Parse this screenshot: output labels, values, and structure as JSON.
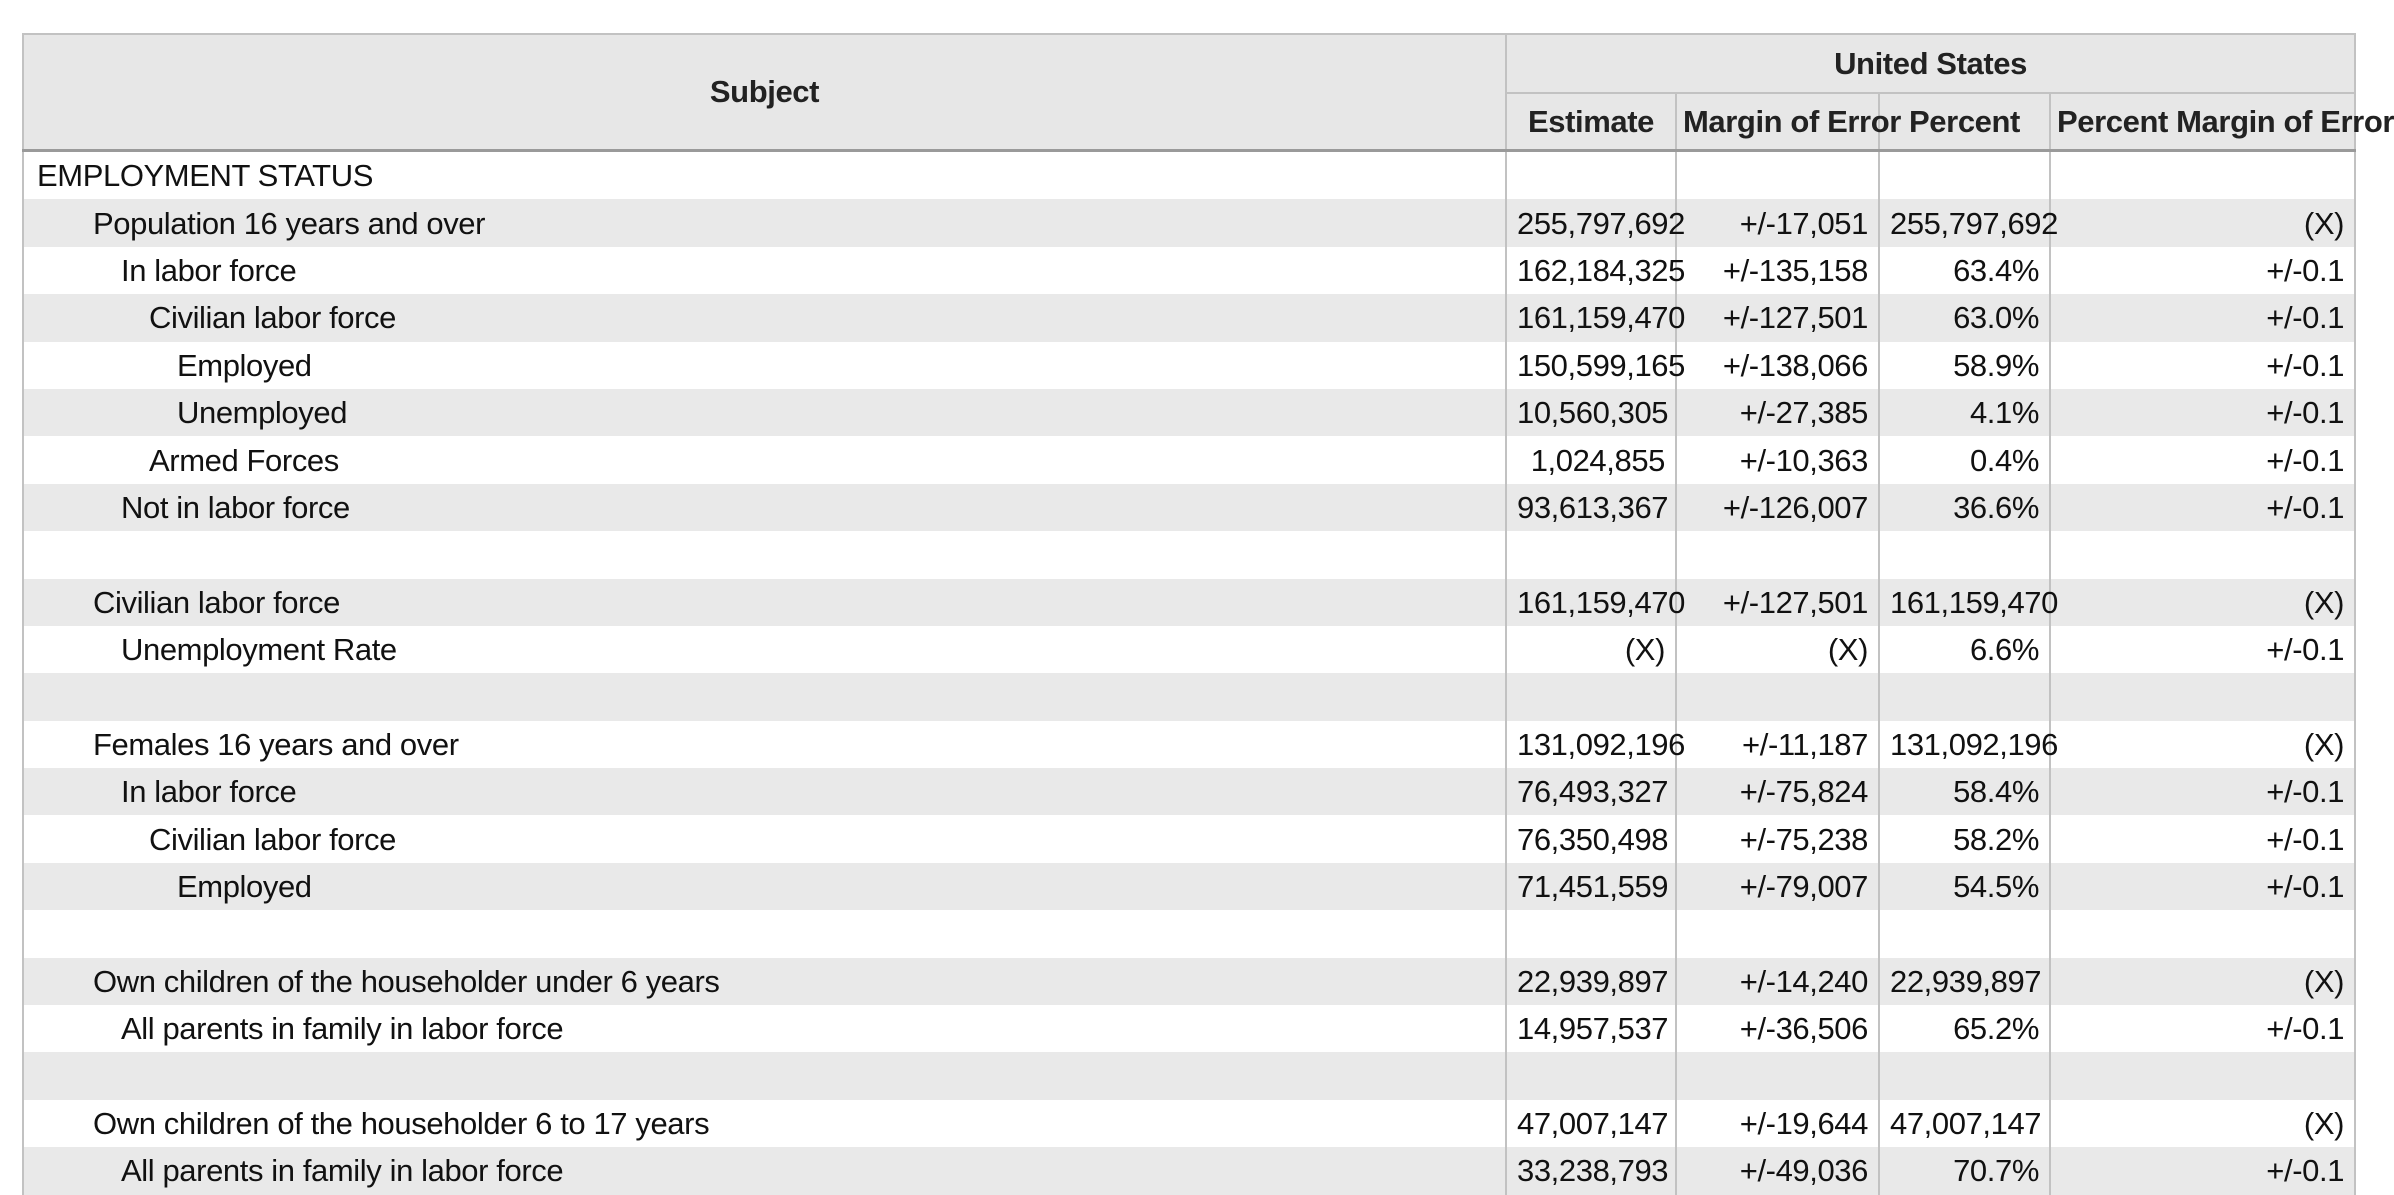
{
  "header": {
    "group_title": "United States",
    "subject": "Subject",
    "estimate": "Estimate",
    "margin_of_error": "Margin of Error",
    "percent": "Percent",
    "percent_margin_of_error": "Percent Margin of Error"
  },
  "rows": [
    {
      "label": "EMPLOYMENT STATUS",
      "indent": 0,
      "estimate": "",
      "moe": "",
      "percent": "",
      "pmoe": ""
    },
    {
      "label": "Population 16 years and over",
      "indent": 1,
      "estimate": "255,797,692",
      "moe": "+/-17,051",
      "percent": "255,797,692",
      "pmoe": "(X)"
    },
    {
      "label": "In labor force",
      "indent": 2,
      "estimate": "162,184,325",
      "moe": "+/-135,158",
      "percent": "63.4%",
      "pmoe": "+/-0.1"
    },
    {
      "label": "Civilian labor force",
      "indent": 3,
      "estimate": "161,159,470",
      "moe": "+/-127,501",
      "percent": "63.0%",
      "pmoe": "+/-0.1"
    },
    {
      "label": "Employed",
      "indent": 4,
      "estimate": "150,599,165",
      "moe": "+/-138,066",
      "percent": "58.9%",
      "pmoe": "+/-0.1"
    },
    {
      "label": "Unemployed",
      "indent": 4,
      "estimate": "10,560,305",
      "moe": "+/-27,385",
      "percent": "4.1%",
      "pmoe": "+/-0.1"
    },
    {
      "label": "Armed Forces",
      "indent": 3,
      "estimate": "1,024,855",
      "moe": "+/-10,363",
      "percent": "0.4%",
      "pmoe": "+/-0.1"
    },
    {
      "label": "Not in labor force",
      "indent": 2,
      "estimate": "93,613,367",
      "moe": "+/-126,007",
      "percent": "36.6%",
      "pmoe": "+/-0.1"
    },
    {
      "label": "",
      "indent": 0,
      "estimate": "",
      "moe": "",
      "percent": "",
      "pmoe": ""
    },
    {
      "label": "Civilian labor force",
      "indent": 1,
      "estimate": "161,159,470",
      "moe": "+/-127,501",
      "percent": "161,159,470",
      "pmoe": "(X)"
    },
    {
      "label": "Unemployment Rate",
      "indent": 2,
      "estimate": "(X)",
      "moe": "(X)",
      "percent": "6.6%",
      "pmoe": "+/-0.1"
    },
    {
      "label": "",
      "indent": 0,
      "estimate": "",
      "moe": "",
      "percent": "",
      "pmoe": ""
    },
    {
      "label": "Females 16 years and over",
      "indent": 1,
      "estimate": "131,092,196",
      "moe": "+/-11,187",
      "percent": "131,092,196",
      "pmoe": "(X)"
    },
    {
      "label": "In labor force",
      "indent": 2,
      "estimate": "76,493,327",
      "moe": "+/-75,824",
      "percent": "58.4%",
      "pmoe": "+/-0.1"
    },
    {
      "label": "Civilian labor force",
      "indent": 3,
      "estimate": "76,350,498",
      "moe": "+/-75,238",
      "percent": "58.2%",
      "pmoe": "+/-0.1"
    },
    {
      "label": "Employed",
      "indent": 4,
      "estimate": "71,451,559",
      "moe": "+/-79,007",
      "percent": "54.5%",
      "pmoe": "+/-0.1"
    },
    {
      "label": "",
      "indent": 0,
      "estimate": "",
      "moe": "",
      "percent": "",
      "pmoe": ""
    },
    {
      "label": "Own children of the householder under 6 years",
      "indent": 1,
      "estimate": "22,939,897",
      "moe": "+/-14,240",
      "percent": "22,939,897",
      "pmoe": "(X)"
    },
    {
      "label": "All parents in family in labor force",
      "indent": 2,
      "estimate": "14,957,537",
      "moe": "+/-36,506",
      "percent": "65.2%",
      "pmoe": "+/-0.1"
    },
    {
      "label": "",
      "indent": 0,
      "estimate": "",
      "moe": "",
      "percent": "",
      "pmoe": ""
    },
    {
      "label": "Own children of the householder 6 to 17 years",
      "indent": 1,
      "estimate": "47,007,147",
      "moe": "+/-19,644",
      "percent": "47,007,147",
      "pmoe": "(X)"
    },
    {
      "label": "All parents in family in labor force",
      "indent": 2,
      "estimate": "33,238,793",
      "moe": "+/-49,036",
      "percent": "70.7%",
      "pmoe": "+/-0.1"
    }
  ]
}
